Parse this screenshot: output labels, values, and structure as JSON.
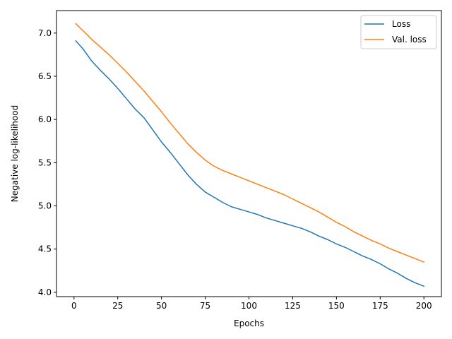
{
  "chart_data": {
    "type": "line",
    "title": "",
    "xlabel": "Epochs",
    "ylabel": "Negative log-likelihood",
    "xlim": [
      -10,
      210
    ],
    "ylim": [
      3.95,
      7.26
    ],
    "xticks": [
      0,
      25,
      50,
      75,
      100,
      125,
      150,
      175,
      200
    ],
    "xtick_labels": [
      "0",
      "25",
      "50",
      "75",
      "100",
      "125",
      "150",
      "175",
      "200"
    ],
    "yticks": [
      4.0,
      4.5,
      5.0,
      5.5,
      6.0,
      6.5,
      7.0
    ],
    "ytick_labels": [
      "4.0",
      "4.5",
      "5.0",
      "5.5",
      "6.0",
      "6.5",
      "7.0"
    ],
    "grid": false,
    "legend_position": "top-right",
    "series": [
      {
        "name": "Loss",
        "color": "#1f77b4",
        "x": [
          1,
          5,
          10,
          15,
          20,
          25,
          30,
          35,
          40,
          45,
          50,
          55,
          60,
          65,
          70,
          75,
          80,
          85,
          90,
          95,
          100,
          105,
          110,
          115,
          120,
          125,
          130,
          135,
          140,
          145,
          150,
          155,
          160,
          165,
          170,
          175,
          180,
          185,
          190,
          195,
          200
        ],
        "y": [
          6.91,
          6.82,
          6.68,
          6.57,
          6.47,
          6.36,
          6.24,
          6.12,
          6.02,
          5.88,
          5.74,
          5.62,
          5.49,
          5.36,
          5.25,
          5.16,
          5.1,
          5.04,
          4.99,
          4.96,
          4.93,
          4.9,
          4.86,
          4.83,
          4.8,
          4.77,
          4.74,
          4.7,
          4.65,
          4.61,
          4.56,
          4.52,
          4.47,
          4.42,
          4.38,
          4.33,
          4.27,
          4.22,
          4.16,
          4.11,
          4.07
        ]
      },
      {
        "name": "Val. loss",
        "color": "#ff7f0e",
        "x": [
          1,
          5,
          10,
          15,
          20,
          25,
          30,
          35,
          40,
          45,
          50,
          55,
          60,
          65,
          70,
          75,
          80,
          85,
          90,
          95,
          100,
          105,
          110,
          115,
          120,
          125,
          130,
          135,
          140,
          145,
          150,
          155,
          160,
          165,
          170,
          175,
          180,
          185,
          190,
          195,
          200
        ],
        "y": [
          7.11,
          7.03,
          6.93,
          6.84,
          6.75,
          6.65,
          6.55,
          6.44,
          6.33,
          6.21,
          6.09,
          5.96,
          5.84,
          5.72,
          5.62,
          5.53,
          5.46,
          5.41,
          5.37,
          5.33,
          5.29,
          5.25,
          5.21,
          5.17,
          5.13,
          5.08,
          5.03,
          4.98,
          4.93,
          4.87,
          4.81,
          4.76,
          4.7,
          4.65,
          4.6,
          4.56,
          4.51,
          4.47,
          4.43,
          4.39,
          4.35
        ]
      }
    ]
  }
}
